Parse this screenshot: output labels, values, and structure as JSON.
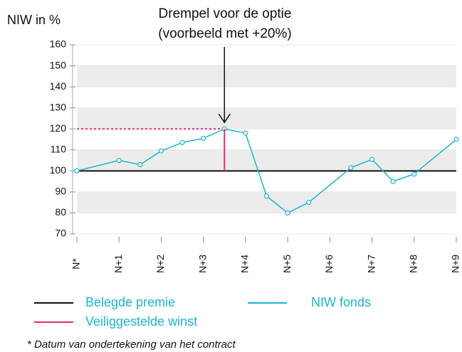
{
  "chart_data": {
    "type": "line",
    "y_label": "NIW in %",
    "annotation": [
      "Drempel voor de optie",
      "(voorbeeld met +20%)"
    ],
    "footnote": "* Datum van ondertekening van het contract",
    "xlim": [
      0,
      9
    ],
    "xticks": [
      {
        "value": 0,
        "label": "N*"
      },
      {
        "value": 1,
        "label": "N+1"
      },
      {
        "value": 2,
        "label": "N+2"
      },
      {
        "value": 3,
        "label": "N+3"
      },
      {
        "value": 4,
        "label": "N+4"
      },
      {
        "value": 5,
        "label": "N+5"
      },
      {
        "value": 6,
        "label": "N+6"
      },
      {
        "value": 7,
        "label": "N+7"
      },
      {
        "value": 8,
        "label": "N+8"
      },
      {
        "value": 9,
        "label": "N+9"
      }
    ],
    "ylim": [
      70,
      160
    ],
    "yticks": [
      70,
      80,
      90,
      100,
      110,
      120,
      130,
      140,
      150,
      160
    ],
    "bands": true,
    "series": [
      {
        "name": "Belegde premie",
        "color": "#111111",
        "x": [
          0,
          9
        ],
        "values": [
          100,
          100
        ]
      },
      {
        "name": "NIW fonds",
        "color": "#1bb3d1",
        "markers": true,
        "x": [
          0,
          1,
          1.5,
          2,
          2.5,
          3,
          3.5,
          4,
          4.5,
          5,
          5.5,
          6.5,
          7,
          7.5,
          8,
          9
        ],
        "values": [
          100,
          105,
          103,
          109.5,
          113.5,
          115.5,
          120,
          118,
          88,
          80,
          85,
          101.5,
          105.5,
          95,
          98.5,
          115
        ]
      },
      {
        "name": "Veiliggestelde winst",
        "color": "#e8287a",
        "x": [
          3.5,
          3.5
        ],
        "values": [
          100,
          120
        ]
      }
    ],
    "threshold": {
      "x": 3.5,
      "value": 120
    }
  }
}
